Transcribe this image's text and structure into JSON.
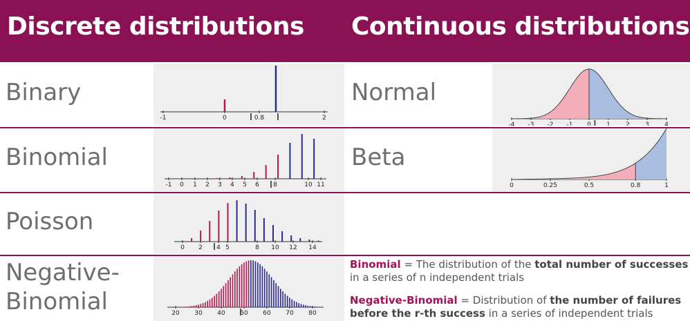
{
  "header": {
    "left_title": "Discrete distributions",
    "right_title": "Continuous distributions"
  },
  "discrete": {
    "binary": {
      "label": "Binary",
      "ticks": [
        "-1",
        "0",
        "0.8",
        "2"
      ]
    },
    "binomial": {
      "label": "Binomial",
      "ticks": [
        "-1",
        "0",
        "1",
        "2",
        "3",
        "4",
        "5",
        "6",
        "8",
        "10",
        "11"
      ],
      "slider_value": "8"
    },
    "poisson": {
      "label": "Poisson",
      "ticks": [
        "0",
        "2",
        "4",
        "5",
        "8",
        "10",
        "12",
        "14"
      ]
    },
    "negative_binomial": {
      "label": "Negative-Binomial",
      "label_line1": "Negative-",
      "label_line2": "Binomial",
      "ticks": [
        "20",
        "30",
        "40",
        "50",
        "60",
        "70",
        "80"
      ]
    }
  },
  "continuous": {
    "normal": {
      "label": "Normal",
      "ticks": [
        "-4",
        "-3",
        "-2",
        "-1",
        "0",
        "1",
        "2",
        "3",
        "4"
      ]
    },
    "beta": {
      "label": "Beta",
      "ticks": [
        "0",
        "0.25",
        "0.5",
        "0.8",
        "1"
      ]
    }
  },
  "notes": {
    "binomial_term": "Binomial",
    "binomial_eq": " = The distribution of the ",
    "binomial_bold": "total number of successes",
    "binomial_rest": " in a series of n independent trials",
    "negbin_term": "Negative-Binomial",
    "negbin_eq": " = Distribution of ",
    "negbin_bold": "the number of failures before the r-th success",
    "negbin_rest": " in a series of independent trials"
  },
  "colors": {
    "header_bg": "#8b1155",
    "red": "#b0174f",
    "blue": "#2a2a8c",
    "normal_left_fill": "#f3aeb9",
    "normal_right_fill": "#a9bde0",
    "panel_bg": "#efefef"
  }
}
